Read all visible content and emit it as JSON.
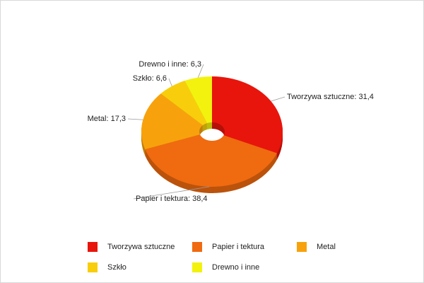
{
  "chart_data": {
    "type": "pie",
    "categories": [
      "Tworzywa sztuczne",
      "Papier i tektura",
      "Metal",
      "Szkło",
      "Drewno i inne"
    ],
    "values": [
      31.4,
      38.4,
      17.3,
      6.6,
      6.3
    ],
    "value_labels": [
      "Tworzywa sztuczne: 31,4",
      "Papier i tektura: 38,4",
      "Metal: 17,3",
      "Szkło: 6,6",
      "Drewno i inne: 6,3"
    ],
    "colors": [
      "#e8150c",
      "#f06a10",
      "#f7a20c",
      "#f8ce0c",
      "#f2f20e"
    ],
    "legend": "bottom"
  }
}
